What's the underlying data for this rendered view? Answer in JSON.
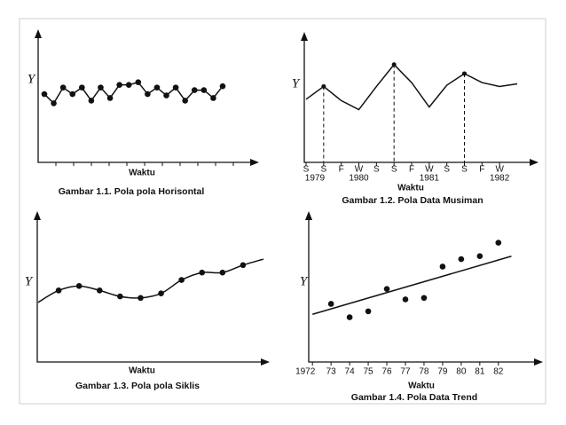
{
  "chart_data": [
    {
      "type": "line",
      "title": "Gambar 1.1. Pola pola Horisontal",
      "x_label": "Waktu",
      "y_label": "Y",
      "categories": [
        null,
        null,
        null,
        null,
        null,
        null,
        null,
        null,
        null,
        null,
        null,
        null,
        null,
        null,
        null,
        null,
        null,
        null,
        null,
        null
      ],
      "values": [
        52,
        45,
        57,
        52,
        57,
        47,
        57,
        49,
        59,
        59,
        61,
        52,
        57,
        51,
        57,
        47,
        55,
        55,
        49,
        58
      ],
      "ylim": [
        0,
        100
      ],
      "color": "#111"
    },
    {
      "type": "line",
      "title": "Gambar 1.2. Pola Data Musiman",
      "x_label": "Waktu",
      "y_label": "Y",
      "categories": [
        "S",
        "S",
        "F",
        "W",
        "S",
        "S",
        "F",
        "W",
        "S",
        "S",
        "F",
        "W",
        null
      ],
      "year_labels": [
        "1979",
        "1980",
        "1981",
        "1982"
      ],
      "values": [
        49,
        59,
        48,
        41,
        59,
        76,
        62,
        43,
        60,
        69,
        62,
        59,
        61
      ],
      "ylim": [
        0,
        100
      ],
      "color": "#111"
    },
    {
      "type": "line",
      "title": "Gambar 1.3. Pola pola Siklis",
      "x_label": "Waktu",
      "y_label": "Y",
      "categories": [
        null,
        null,
        null,
        null,
        null,
        null,
        null,
        null,
        null,
        null,
        null,
        null
      ],
      "values": [
        40,
        48,
        51,
        48,
        44,
        43,
        46,
        55,
        60,
        60,
        65,
        69
      ],
      "smooth": true,
      "ylim": [
        0,
        100
      ],
      "color": "#111"
    },
    {
      "type": "scatter",
      "title": "Gambar 1.4. Pola Data Trend",
      "x_label": "Waktu",
      "y_label": "Y",
      "x": [
        73,
        74,
        75,
        76,
        77,
        78,
        79,
        80,
        81,
        82
      ],
      "values": [
        39,
        30,
        34,
        49,
        42,
        43,
        64,
        69,
        71,
        80
      ],
      "trend_line": {
        "x": [
          72,
          82.7
        ],
        "y": [
          32,
          71
        ]
      },
      "xlim": [
        71.8,
        84.3
      ],
      "xticks": [
        {
          "value": 72,
          "label": "1972"
        },
        73,
        74,
        75,
        76,
        77,
        78,
        79,
        80,
        81,
        82
      ],
      "ylim": [
        0,
        100
      ],
      "color": "#111"
    }
  ]
}
